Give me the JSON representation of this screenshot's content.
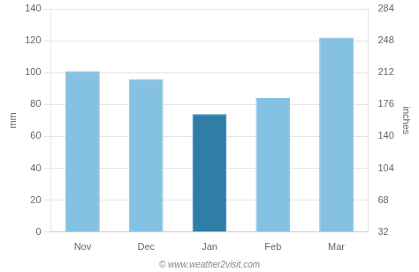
{
  "chart_data": {
    "type": "bar",
    "categories": [
      "Nov",
      "Dec",
      "Jan",
      "Feb",
      "Mar"
    ],
    "values": [
      101,
      96,
      74,
      84,
      122
    ],
    "colors": [
      "#85c1e2",
      "#85c1e2",
      "#2e7ea6",
      "#85c1e2",
      "#85c1e2"
    ],
    "ylabel": "mm",
    "y2label": "inches",
    "ylim": [
      0,
      140
    ],
    "yticks": [
      0,
      20,
      40,
      60,
      80,
      100,
      120,
      140
    ],
    "y2lim": [
      32,
      284
    ],
    "y2ticks": [
      32,
      68,
      104,
      140,
      176,
      212,
      248,
      284
    ],
    "grid": true,
    "annotations": [
      "© www.weather2visit.com"
    ]
  }
}
